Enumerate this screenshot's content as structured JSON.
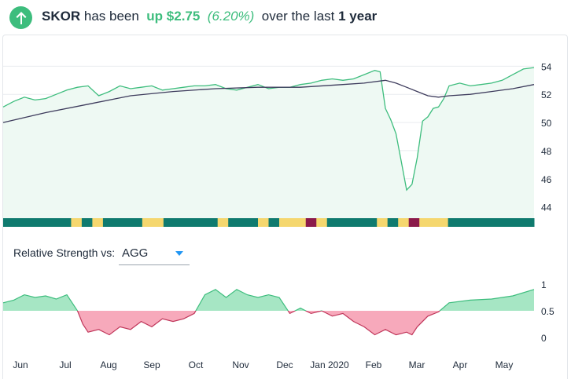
{
  "header": {
    "ticker": "SKOR",
    "text_has_been": "has been",
    "direction": "up",
    "change": "$2.75",
    "change_pct": "(6.20%)",
    "text_over": "over the last",
    "period": "1 year"
  },
  "relative_strength": {
    "label": "Relative Strength vs:",
    "selected": "AGG"
  },
  "months": [
    "Jun",
    "Jul",
    "Aug",
    "Sep",
    "Oct",
    "Nov",
    "Dec",
    "Jan 2020",
    "Feb",
    "Mar",
    "Apr",
    "May"
  ],
  "colors": {
    "green": "#3dbd7d",
    "area": "#eef9f3",
    "teal": "#0f7a6e",
    "yellow": "#f5d76e",
    "maroon": "#8b1a4a",
    "rs_pos": "#a6e6c4",
    "rs_neg": "#f7a9bb"
  },
  "chart_data": [
    {
      "type": "line",
      "yticks": [
        44,
        46,
        48,
        50,
        52,
        54
      ],
      "ylim": [
        43.2,
        54.8
      ],
      "xlim": [
        0,
        50
      ],
      "series": [
        {
          "x": [
            0,
            1,
            2,
            3,
            4,
            5,
            6,
            7,
            8,
            9,
            10,
            11,
            12,
            13,
            14,
            15,
            16,
            17,
            18,
            19,
            20,
            21,
            22,
            23,
            24,
            25,
            26,
            27,
            28,
            29,
            30,
            31,
            32,
            33,
            34,
            35,
            35.5,
            36,
            36.5,
            37,
            37.5,
            38,
            38.5,
            39,
            39.5,
            40,
            40.5,
            41,
            41.5,
            42,
            43,
            44,
            45,
            46,
            47,
            48,
            49,
            50
          ],
          "values": [
            51.1,
            51.5,
            51.8,
            51.6,
            51.7,
            52.0,
            52.3,
            52.5,
            52.6,
            51.9,
            52.2,
            52.6,
            52.4,
            52.5,
            52.6,
            52.3,
            52.4,
            52.5,
            52.6,
            52.6,
            52.7,
            52.4,
            52.3,
            52.5,
            52.7,
            52.4,
            52.5,
            52.5,
            52.7,
            52.8,
            53.0,
            53.1,
            53.0,
            53.1,
            53.4,
            53.7,
            53.6,
            51.0,
            50.2,
            49.2,
            47.2,
            45.2,
            45.6,
            47.5,
            50.1,
            50.4,
            51.0,
            51.1,
            51.7,
            52.6,
            52.8,
            52.6,
            52.7,
            52.8,
            53.0,
            53.4,
            53.8,
            53.9
          ]
        },
        {
          "x": [
            0,
            4,
            8,
            12,
            16,
            20,
            24,
            28,
            32,
            34,
            36,
            37,
            38,
            39,
            40,
            41,
            42,
            44,
            46,
            48,
            50
          ],
          "values": [
            50.0,
            50.7,
            51.3,
            51.9,
            52.2,
            52.4,
            52.5,
            52.5,
            52.7,
            52.8,
            53.0,
            52.8,
            52.5,
            52.2,
            51.9,
            51.8,
            51.9,
            52.0,
            52.2,
            52.4,
            52.7
          ]
        }
      ],
      "rating_bar": [
        {
          "start": 0,
          "end": 6.4,
          "rating": "teal"
        },
        {
          "start": 6.4,
          "end": 7.4,
          "rating": "yellow"
        },
        {
          "start": 7.4,
          "end": 8.4,
          "rating": "teal"
        },
        {
          "start": 8.4,
          "end": 9.4,
          "rating": "yellow"
        },
        {
          "start": 9.4,
          "end": 13.1,
          "rating": "teal"
        },
        {
          "start": 13.1,
          "end": 15.1,
          "rating": "yellow"
        },
        {
          "start": 15.1,
          "end": 20.2,
          "rating": "teal"
        },
        {
          "start": 20.2,
          "end": 21.2,
          "rating": "yellow"
        },
        {
          "start": 21.2,
          "end": 24.0,
          "rating": "teal"
        },
        {
          "start": 24.0,
          "end": 25.0,
          "rating": "yellow"
        },
        {
          "start": 25.0,
          "end": 26.0,
          "rating": "teal"
        },
        {
          "start": 26.0,
          "end": 28.5,
          "rating": "yellow"
        },
        {
          "start": 28.5,
          "end": 29.5,
          "rating": "maroon"
        },
        {
          "start": 29.5,
          "end": 30.5,
          "rating": "yellow"
        },
        {
          "start": 30.5,
          "end": 35.2,
          "rating": "teal"
        },
        {
          "start": 35.2,
          "end": 36.2,
          "rating": "yellow"
        },
        {
          "start": 36.2,
          "end": 37.2,
          "rating": "teal"
        },
        {
          "start": 37.2,
          "end": 38.2,
          "rating": "yellow"
        },
        {
          "start": 38.2,
          "end": 39.2,
          "rating": "maroon"
        },
        {
          "start": 39.2,
          "end": 41.9,
          "rating": "yellow"
        },
        {
          "start": 41.9,
          "end": 50,
          "rating": "teal"
        }
      ]
    },
    {
      "type": "area",
      "yticks": [
        "1",
        "0.5",
        "0"
      ],
      "ylim": [
        -0.15,
        1.15
      ],
      "xlim": [
        0,
        50
      ],
      "series": [
        {
          "x": [
            0,
            1,
            2,
            3,
            4,
            5,
            6,
            7,
            7.5,
            8,
            9,
            10,
            11,
            12,
            13,
            14,
            15,
            16,
            17,
            18,
            19,
            20,
            21,
            22,
            23,
            24,
            25,
            26,
            27,
            28,
            29,
            30,
            31,
            32,
            33,
            34,
            35,
            36,
            37,
            38,
            38.5,
            39,
            40,
            41,
            42,
            44,
            46,
            48,
            50
          ],
          "values": [
            0.65,
            0.7,
            0.8,
            0.75,
            0.78,
            0.72,
            0.8,
            0.5,
            0.25,
            0.1,
            0.15,
            0.05,
            0.2,
            0.15,
            0.3,
            0.2,
            0.35,
            0.3,
            0.35,
            0.45,
            0.8,
            0.9,
            0.75,
            0.9,
            0.8,
            0.75,
            0.8,
            0.75,
            0.45,
            0.55,
            0.45,
            0.5,
            0.4,
            0.45,
            0.3,
            0.2,
            0.05,
            0.15,
            0.05,
            0.1,
            0.05,
            0.2,
            0.4,
            0.48,
            0.65,
            0.7,
            0.72,
            0.78,
            0.9
          ]
        }
      ]
    }
  ]
}
